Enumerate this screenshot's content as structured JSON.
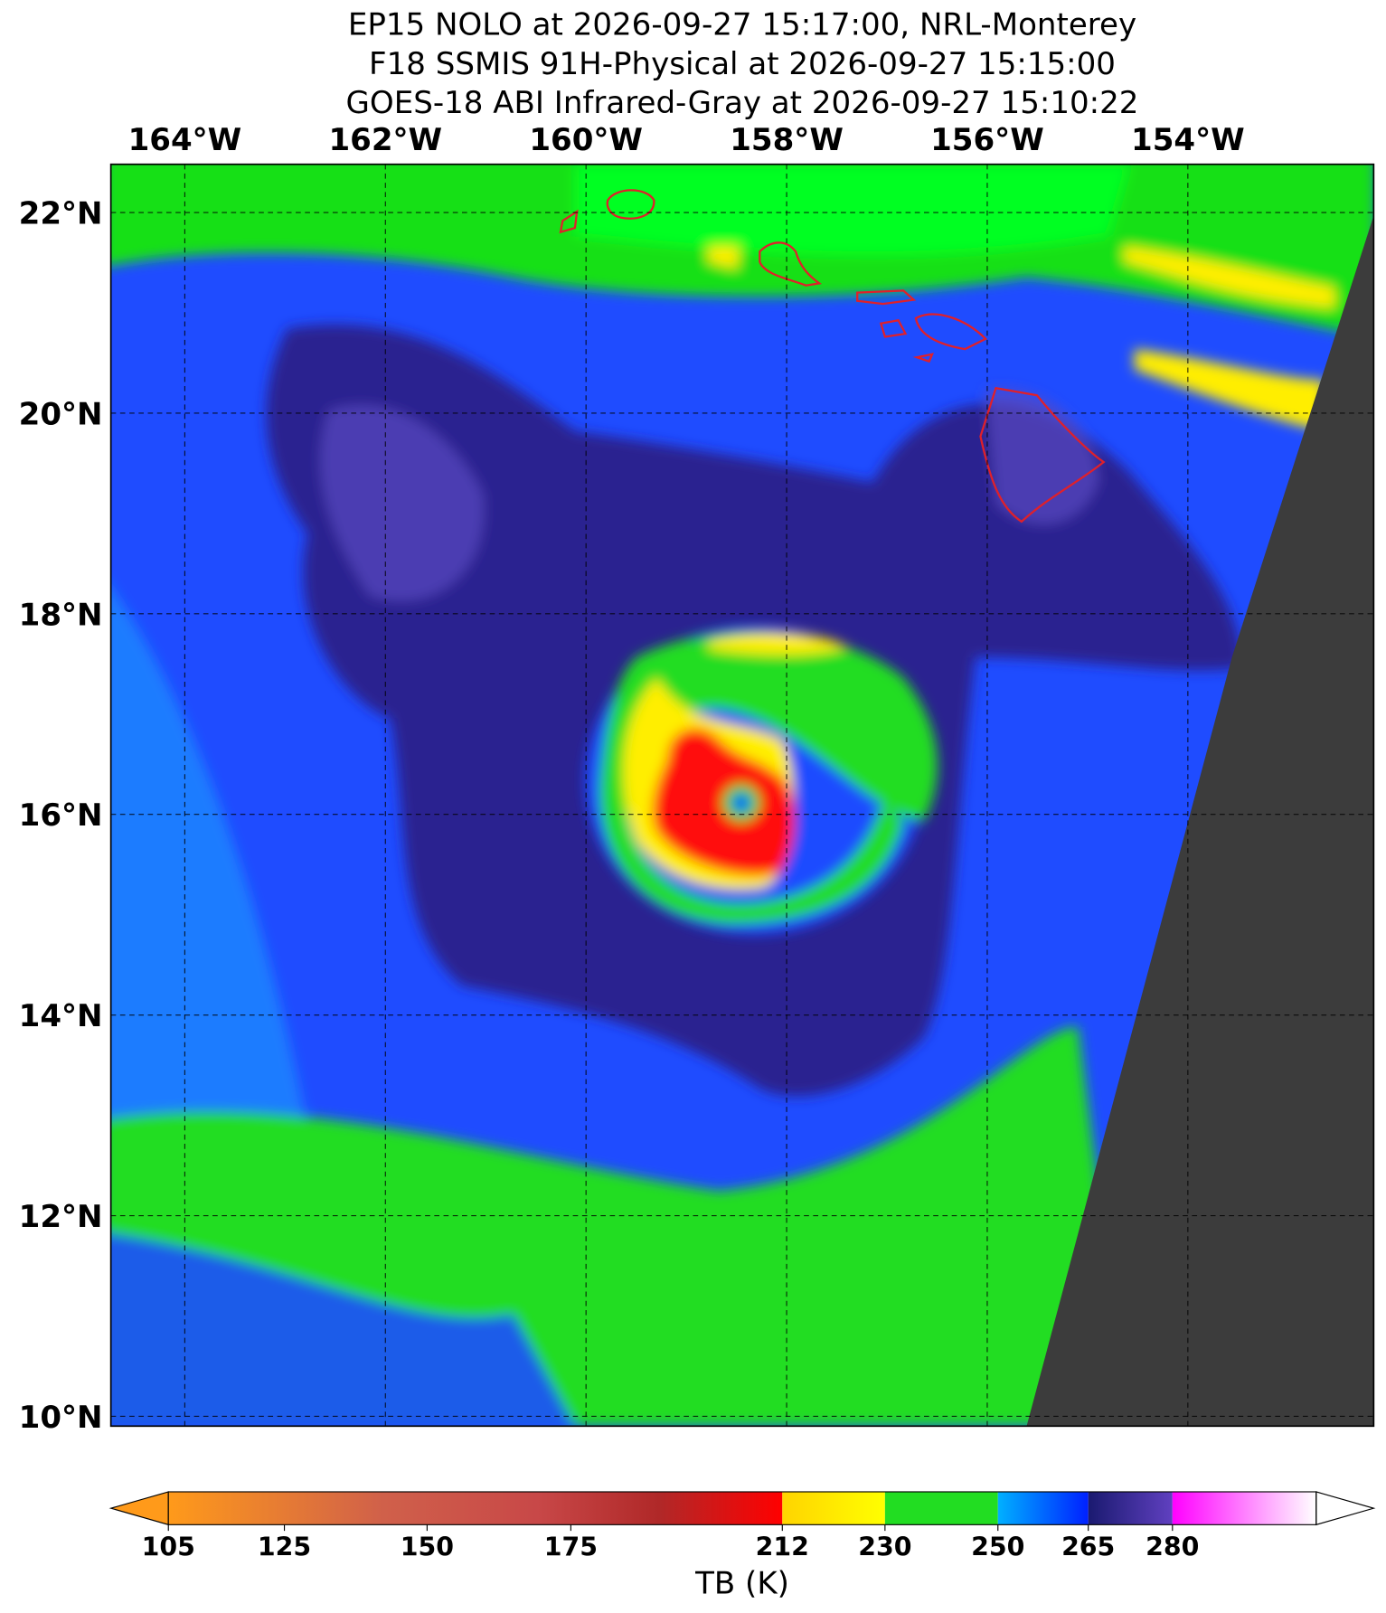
{
  "header": {
    "lines": [
      "EP15 NOLO at 2026-09-27 15:17:00, NRL-Monterey",
      "F18 SSMIS 91H-Physical at 2026-09-27 15:15:00",
      "GOES-18 ABI Infrared-Gray at 2026-09-27 15:10:22"
    ]
  },
  "map": {
    "lon_labels": [
      "164°W",
      "162°W",
      "160°W",
      "158°W",
      "156°W",
      "154°W"
    ],
    "lat_labels": [
      "22°N",
      "20°N",
      "18°N",
      "16°N",
      "14°N",
      "12°N",
      "10°N"
    ]
  },
  "colorbar": {
    "ticks": [
      "105",
      "125",
      "150",
      "175",
      "212",
      "230",
      "250",
      "265",
      "280"
    ],
    "label": "TB (K)"
  }
}
